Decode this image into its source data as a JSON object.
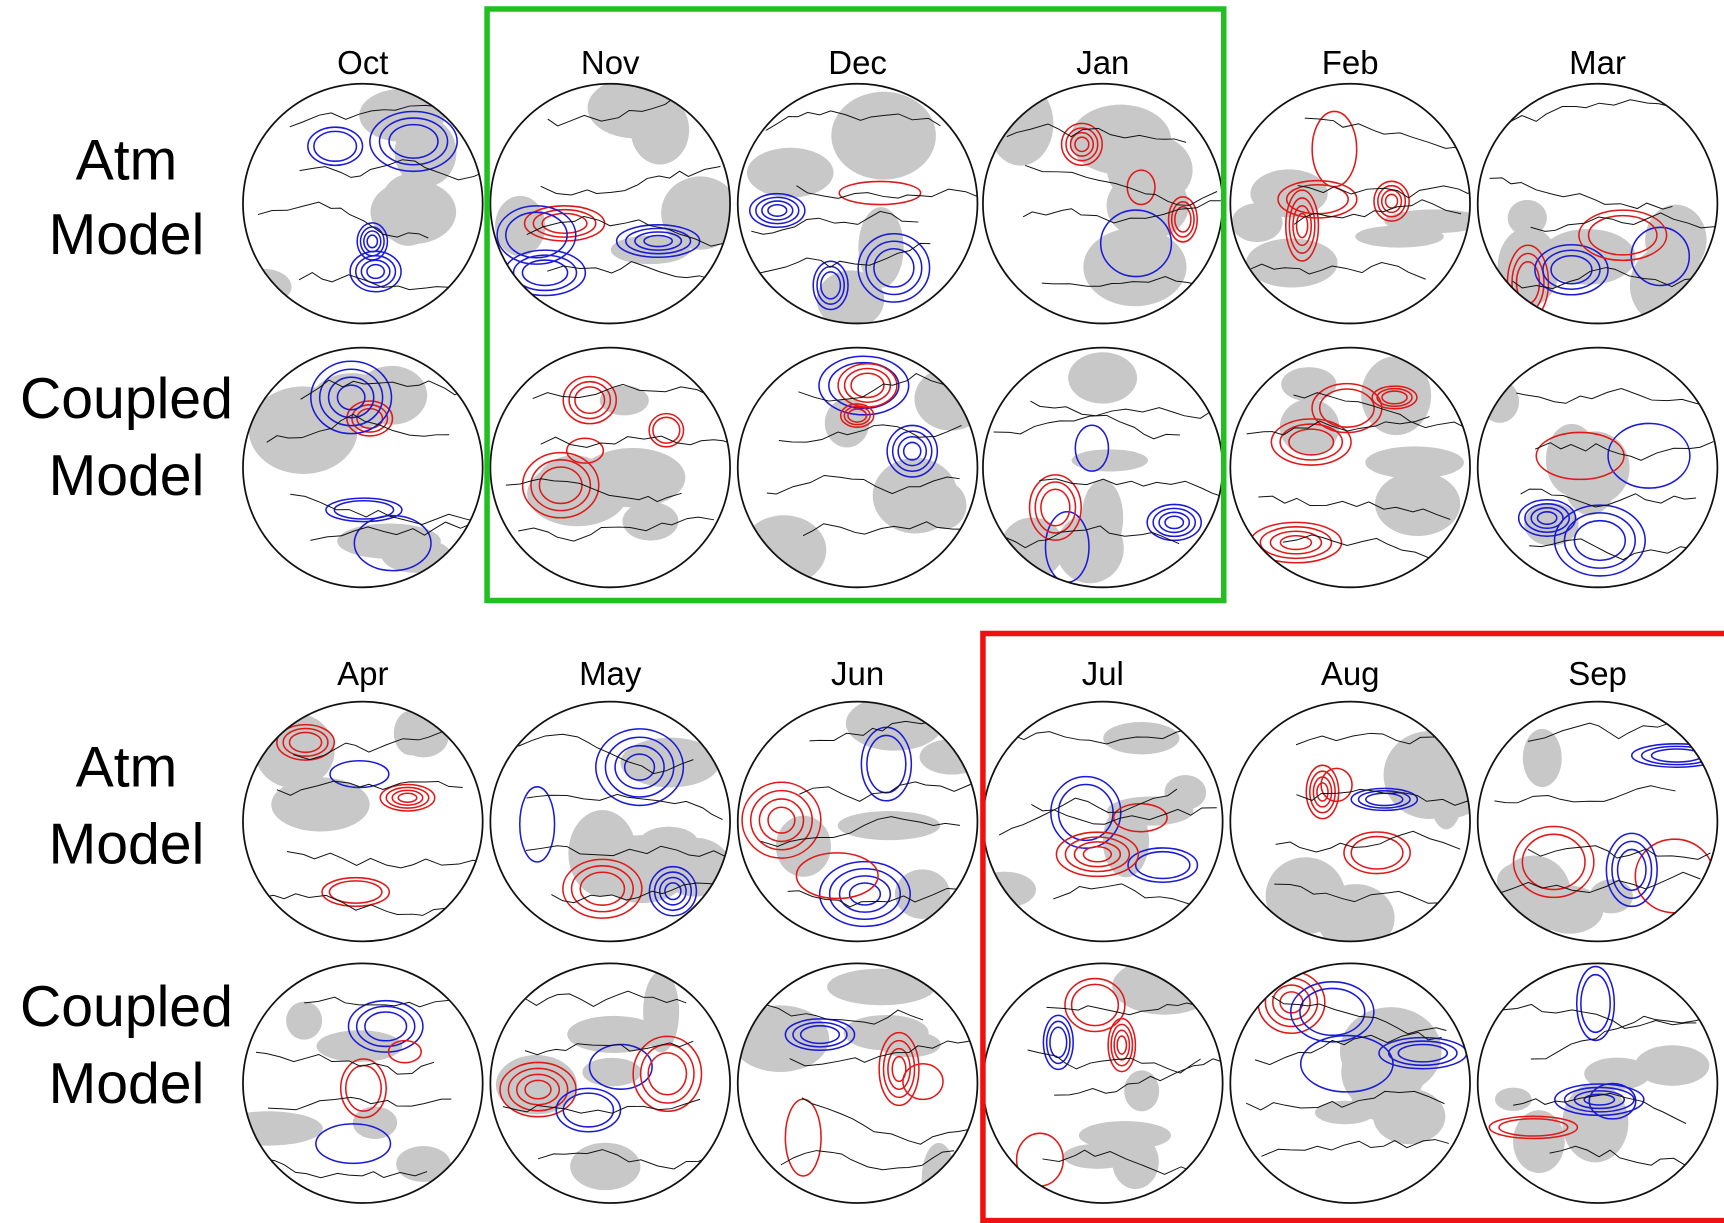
{
  "sections": [
    {
      "months": [
        "Oct",
        "Nov",
        "Dec",
        "Jan",
        "Feb",
        "Mar"
      ],
      "row_labels": [
        [
          "Atm",
          "Model"
        ],
        [
          "Coupled",
          "Model"
        ]
      ]
    },
    {
      "months": [
        "Apr",
        "May",
        "Jun",
        "Jul",
        "Aug",
        "Sep"
      ],
      "row_labels": [
        [
          "Atm",
          "Model"
        ],
        [
          "Coupled",
          "Model"
        ]
      ]
    }
  ]
}
